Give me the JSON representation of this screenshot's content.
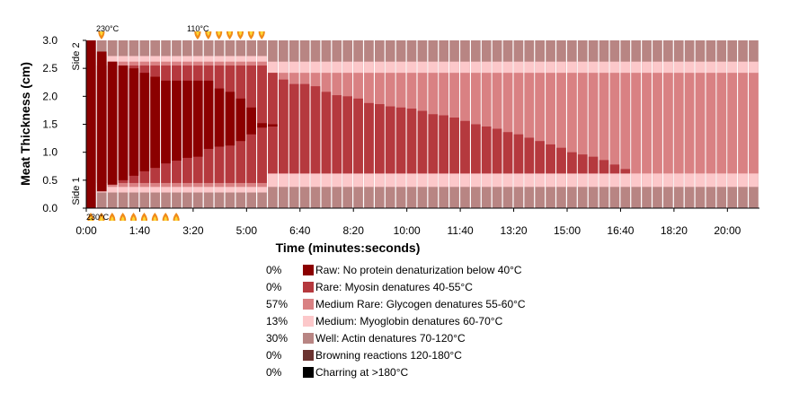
{
  "chart_data": {
    "type": "bar",
    "subtype": "stacked-time-slices",
    "xlabel": "Time (minutes:seconds)",
    "ylabel": "Meat Thickness (cm)",
    "ylim": [
      0,
      3.0
    ],
    "xlim_seconds": [
      0,
      1260
    ],
    "slice_seconds": 20,
    "slices": 63,
    "y_ticks": [
      "0.0",
      "0.5",
      "1.0",
      "1.5",
      "2.0",
      "2.5",
      "3.0"
    ],
    "x_ticks": [
      "0:00",
      "1:40",
      "3:20",
      "5:00",
      "6:40",
      "8:20",
      "10:00",
      "11:40",
      "13:20",
      "15:00",
      "16:40",
      "18:20",
      "20:00"
    ],
    "side_labels": [
      "Side 2",
      "Side 1"
    ],
    "grid": false,
    "legend_position": "bottom",
    "temperature_annotations": [
      {
        "label": "230°C",
        "position": "bottom-left"
      },
      {
        "label": "230°C",
        "position": "top-left"
      },
      {
        "label": "110°C",
        "position": "top-middle"
      }
    ],
    "legend": [
      {
        "pct": "0%",
        "label": "Raw: No protein denaturization below 40°C",
        "color": "#8b0000"
      },
      {
        "pct": "0%",
        "label": "Rare: Myosin denatures 40-55°C",
        "color": "#b5393e"
      },
      {
        "pct": "57%",
        "label": "Medium Rare: Glycogen denatures 55-60°C",
        "color": "#d98183"
      },
      {
        "pct": "13%",
        "label": "Medium: Myoglobin denatures 60-70°C",
        "color": "#fcc8ca"
      },
      {
        "pct": "30%",
        "label": "Well: Actin denatures 70-120°C",
        "color": "#b88583"
      },
      {
        "pct": "0%",
        "label": "Browning reactions 120-180°C",
        "color": "#6b3330"
      },
      {
        "pct": "0%",
        "label": "Charring at >180°C",
        "color": "#000000"
      }
    ],
    "raw_core_cm": [
      [
        0,
        3.0,
        0
      ],
      [
        20,
        2.8,
        0.3
      ],
      [
        40,
        2.62,
        0.42
      ],
      [
        60,
        2.55,
        0.5
      ],
      [
        80,
        2.5,
        0.58
      ],
      [
        100,
        2.42,
        0.66
      ],
      [
        120,
        2.35,
        0.72
      ],
      [
        140,
        2.28,
        0.8
      ],
      [
        160,
        2.28,
        0.85
      ],
      [
        180,
        2.28,
        0.9
      ],
      [
        200,
        2.28,
        0.92
      ],
      [
        220,
        2.28,
        1.06
      ],
      [
        240,
        2.14,
        1.1
      ],
      [
        260,
        2.08,
        1.12
      ],
      [
        280,
        1.96,
        1.2
      ],
      [
        300,
        1.8,
        1.32
      ],
      [
        320,
        1.52,
        1.44
      ],
      [
        340,
        1.5,
        1.46
      ]
    ],
    "rare_core_cm": [
      [
        340,
        2.42,
        0.62
      ],
      [
        360,
        2.3,
        0.62
      ],
      [
        380,
        2.22,
        0.62
      ],
      [
        420,
        2.18,
        0.62
      ],
      [
        440,
        2.08,
        0.62
      ],
      [
        460,
        2.02,
        0.62
      ],
      [
        480,
        2.0,
        0.62
      ],
      [
        500,
        1.96,
        0.62
      ],
      [
        520,
        1.88,
        0.62
      ],
      [
        540,
        1.86,
        0.62
      ],
      [
        560,
        1.82,
        0.62
      ],
      [
        580,
        1.8,
        0.62
      ],
      [
        600,
        1.78,
        0.62
      ],
      [
        620,
        1.74,
        0.62
      ],
      [
        640,
        1.68,
        0.62
      ],
      [
        660,
        1.66,
        0.62
      ],
      [
        680,
        1.62,
        0.62
      ],
      [
        700,
        1.56,
        0.62
      ],
      [
        720,
        1.5,
        0.62
      ],
      [
        740,
        1.46,
        0.62
      ],
      [
        760,
        1.42,
        0.62
      ],
      [
        780,
        1.36,
        0.62
      ],
      [
        800,
        1.32,
        0.62
      ],
      [
        820,
        1.26,
        0.62
      ],
      [
        840,
        1.2,
        0.62
      ],
      [
        860,
        1.14,
        0.62
      ],
      [
        880,
        1.08,
        0.62
      ],
      [
        900,
        1.0,
        0.62
      ],
      [
        920,
        0.96,
        0.62
      ],
      [
        940,
        0.92,
        0.62
      ],
      [
        960,
        0.86,
        0.62
      ],
      [
        980,
        0.78,
        0.62
      ],
      [
        1000,
        0.7,
        0.62
      ],
      [
        1020,
        0.0,
        0.0
      ]
    ]
  }
}
